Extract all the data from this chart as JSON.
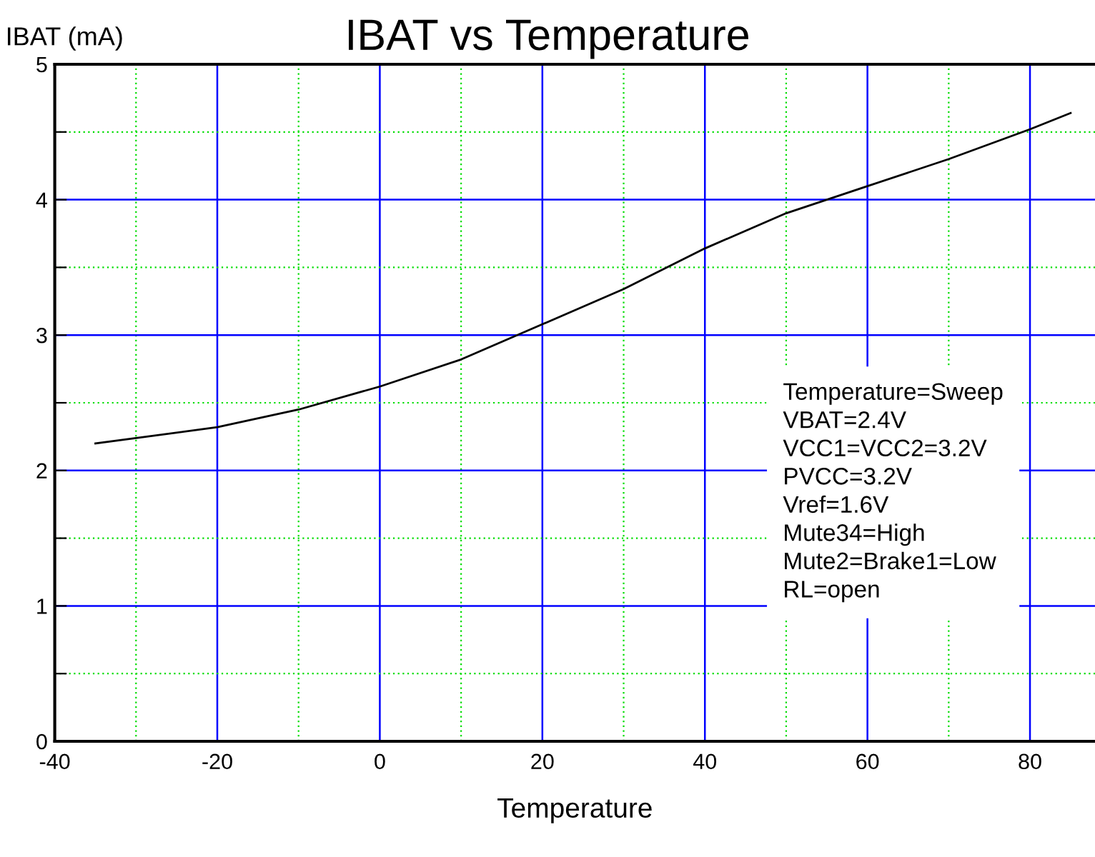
{
  "chart_data": {
    "type": "line",
    "title": "IBAT vs Temperature",
    "ylabel": "IBAT (mA)",
    "xlabel": "Temperature",
    "x": [
      -35,
      -30,
      -20,
      -10,
      0,
      10,
      20,
      30,
      40,
      50,
      60,
      70,
      80,
      85
    ],
    "series": [
      {
        "color": "#000000",
        "values": [
          2.2,
          2.24,
          2.32,
          2.45,
          2.62,
          2.82,
          3.08,
          3.34,
          3.64,
          3.9,
          4.1,
          4.3,
          4.52,
          4.64
        ]
      }
    ],
    "xlim": [
      -40,
      88
    ],
    "ylim": [
      0,
      5
    ],
    "xticks": [
      -40,
      {
        "value": -30,
        "label": null
      },
      -20,
      {
        "value": -10,
        "label": null
      },
      0,
      {
        "value": 10,
        "label": null
      },
      20,
      {
        "value": 30,
        "label": null
      },
      40,
      {
        "value": 50,
        "label": null
      },
      60,
      {
        "value": 70,
        "label": null
      },
      80
    ],
    "yticks": [
      0,
      {
        "value": 0.5,
        "label": null
      },
      1,
      {
        "value": 1.5,
        "label": null
      },
      2,
      {
        "value": 2.5,
        "label": null
      },
      3,
      {
        "value": 3.5,
        "label": null
      },
      4,
      {
        "value": 4.5,
        "label": null
      },
      5
    ],
    "grid": true,
    "marker": "none",
    "line_style": "solid",
    "annotations": [
      "Temperature=Sweep",
      "VBAT=2.4V",
      "VCC1=VCC2=3.2V",
      "PVCC=3.2V",
      "Vref=1.6V",
      "Mute34=High",
      "Mute2=Brake1=Low",
      "RL=open"
    ]
  }
}
